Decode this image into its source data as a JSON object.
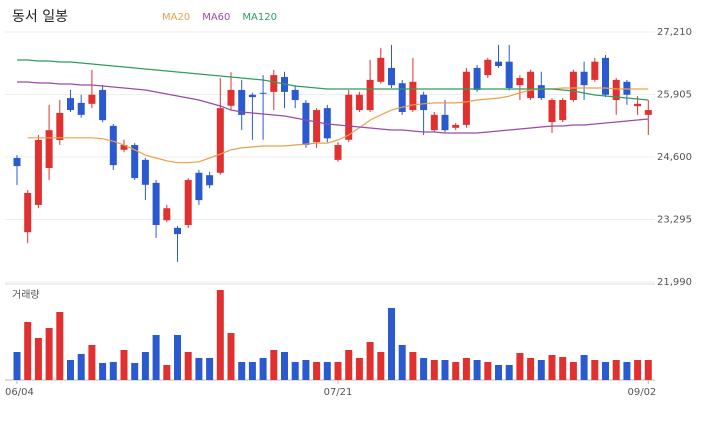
{
  "chart_data": {
    "type": "candlestick",
    "title": "동서 일봉",
    "volume_label": "거래량",
    "categories": [
      "06/04",
      null,
      null,
      null,
      null,
      null,
      null,
      null,
      null,
      null,
      null,
      null,
      null,
      null,
      null,
      null,
      null,
      null,
      null,
      null,
      null,
      null,
      null,
      null,
      null,
      null,
      null,
      null,
      null,
      null,
      "07/21",
      null,
      null,
      null,
      null,
      null,
      null,
      null,
      null,
      null,
      null,
      null,
      null,
      null,
      null,
      null,
      null,
      null,
      null,
      null,
      null,
      null,
      null,
      null,
      null,
      null,
      null,
      null,
      null,
      "09/02"
    ],
    "open": [
      24580,
      23030,
      23600,
      24370,
      24955,
      25830,
      25730,
      25710,
      26000,
      25250,
      24750,
      24850,
      24540,
      24060,
      23280,
      23120,
      23180,
      24270,
      24220,
      24270,
      25670,
      26000,
      25900,
      25940,
      25960,
      26270,
      26000,
      25730,
      24910,
      25620,
      24540,
      24960,
      25580,
      25580,
      26170,
      26460,
      26140,
      25580,
      25900,
      25160,
      25480,
      25210,
      25270,
      26460,
      26310,
      26590,
      26590,
      26100,
      25830,
      26100,
      25330,
      25370,
      25790,
      26380,
      26210,
      26670,
      25790,
      26170,
      25660,
      25480
    ],
    "high": [
      24640,
      23910,
      25060,
      25690,
      25790,
      26000,
      25900,
      26420,
      26100,
      25290,
      24960,
      24890,
      24580,
      24120,
      23600,
      23160,
      24160,
      24330,
      24290,
      26250,
      26370,
      26210,
      25940,
      26310,
      26420,
      26380,
      26100,
      25790,
      25620,
      25690,
      24910,
      26000,
      25960,
      26630,
      26880,
      26940,
      26210,
      26670,
      25960,
      25540,
      25790,
      25310,
      26460,
      26520,
      26670,
      26940,
      26940,
      26310,
      26420,
      26380,
      25830,
      25830,
      26420,
      26590,
      26670,
      26730,
      26250,
      26210,
      25870,
      25790
    ],
    "low": [
      24015,
      22800,
      23530,
      24120,
      24850,
      25540,
      25420,
      25620,
      25330,
      24330,
      24700,
      24120,
      23700,
      22910,
      23240,
      22410,
      23120,
      23600,
      23950,
      24230,
      25580,
      25160,
      24960,
      24960,
      25580,
      25620,
      25620,
      24790,
      24790,
      24910,
      24500,
      24910,
      25540,
      25540,
      26130,
      26040,
      25480,
      25540,
      25060,
      25120,
      25120,
      25160,
      25210,
      25960,
      26250,
      26460,
      25990,
      25790,
      25790,
      25790,
      25100,
      25330,
      25750,
      25790,
      26170,
      25850,
      25480,
      25690,
      25480,
      25060
    ],
    "close": [
      24410,
      23850,
      24955,
      25160,
      25520,
      25580,
      25480,
      25900,
      25370,
      24430,
      24850,
      24160,
      24020,
      23180,
      23530,
      22990,
      24120,
      23700,
      24010,
      25620,
      26000,
      25480,
      25850,
      25920,
      26310,
      25960,
      25790,
      24850,
      25580,
      24990,
      24850,
      25900,
      25900,
      26210,
      26670,
      26100,
      25540,
      26170,
      25580,
      25480,
      25160,
      25270,
      26380,
      26000,
      26630,
      26500,
      26040,
      26250,
      26380,
      25830,
      25790,
      25790,
      26380,
      26100,
      26590,
      25900,
      26210,
      25900,
      25710,
      25580
    ],
    "volume": [
      28,
      58,
      42,
      52,
      68,
      20,
      26,
      35,
      17,
      18,
      30,
      17,
      28,
      45,
      15,
      45,
      28,
      22,
      22,
      90,
      47,
      18,
      18,
      22,
      30,
      28,
      18,
      20,
      18,
      18,
      18,
      30,
      22,
      38,
      28,
      72,
      35,
      28,
      22,
      20,
      20,
      18,
      22,
      20,
      18,
      15,
      15,
      27,
      22,
      20,
      25,
      23,
      18,
      25,
      20,
      18,
      20,
      18,
      20,
      20
    ],
    "up_color": "#e0302f",
    "down_color": "#2b59cf",
    "series": [
      {
        "name": "MA20",
        "color": "#e9a04a",
        "values": [
          null,
          25000,
          25000,
          25000,
          25000,
          25000,
          25000,
          25000,
          24980,
          24930,
          24850,
          24750,
          24640,
          24580,
          24520,
          24480,
          24480,
          24500,
          24580,
          24660,
          24750,
          24790,
          24810,
          24830,
          24830,
          24830,
          24850,
          24870,
          24890,
          24890,
          24955,
          25060,
          25210,
          25370,
          25480,
          25580,
          25640,
          25690,
          25710,
          25730,
          25730,
          25730,
          25750,
          25790,
          25810,
          25830,
          25870,
          25940,
          26000,
          26020,
          26020,
          26040,
          26040,
          26040,
          26040,
          26040,
          26020,
          26020,
          26020,
          26020
        ]
      },
      {
        "name": "MA60",
        "color": "#9a4aa8",
        "values": [
          26166,
          26166,
          26145,
          26145,
          26124,
          26124,
          26103,
          26103,
          26083,
          26062,
          26041,
          26020,
          25999,
          25957,
          25916,
          25874,
          25832,
          25790,
          25728,
          25665,
          25581,
          25540,
          25519,
          25498,
          25477,
          25456,
          25414,
          25373,
          25331,
          25289,
          25268,
          25247,
          25226,
          25206,
          25185,
          25164,
          25164,
          25143,
          25122,
          25122,
          25101,
          25101,
          25101,
          25101,
          25122,
          25143,
          25164,
          25185,
          25206,
          25226,
          25247,
          25247,
          25268,
          25268,
          25289,
          25310,
          25331,
          25352,
          25373,
          25393
        ]
      },
      {
        "name": "MA120",
        "color": "#2e9e5a",
        "values": [
          26625,
          26625,
          26604,
          26604,
          26583,
          26583,
          26563,
          26542,
          26521,
          26500,
          26479,
          26458,
          26437,
          26417,
          26396,
          26375,
          26354,
          26333,
          26312,
          26291,
          26270,
          26250,
          26229,
          26208,
          26166,
          26124,
          26083,
          26062,
          26041,
          26020,
          26020,
          26020,
          26020,
          26020,
          26020,
          26020,
          26020,
          26020,
          26020,
          26020,
          26020,
          26020,
          26020,
          26020,
          26020,
          26020,
          26020,
          26020,
          26020,
          26020,
          26020,
          25999,
          25978,
          25936,
          25895,
          25874,
          25853,
          25832,
          25811,
          25790
        ]
      }
    ],
    "ylim": [
      21990,
      27210
    ],
    "yticks": [
      {
        "value": 21990,
        "label": "21,990"
      },
      {
        "value": 23295,
        "label": "23,295"
      },
      {
        "value": 24600,
        "label": "24,600"
      },
      {
        "value": 25905,
        "label": "25,905"
      },
      {
        "value": 27210,
        "label": "27,210"
      }
    ],
    "volume_ylim": [
      0,
      95
    ],
    "grid": true
  }
}
